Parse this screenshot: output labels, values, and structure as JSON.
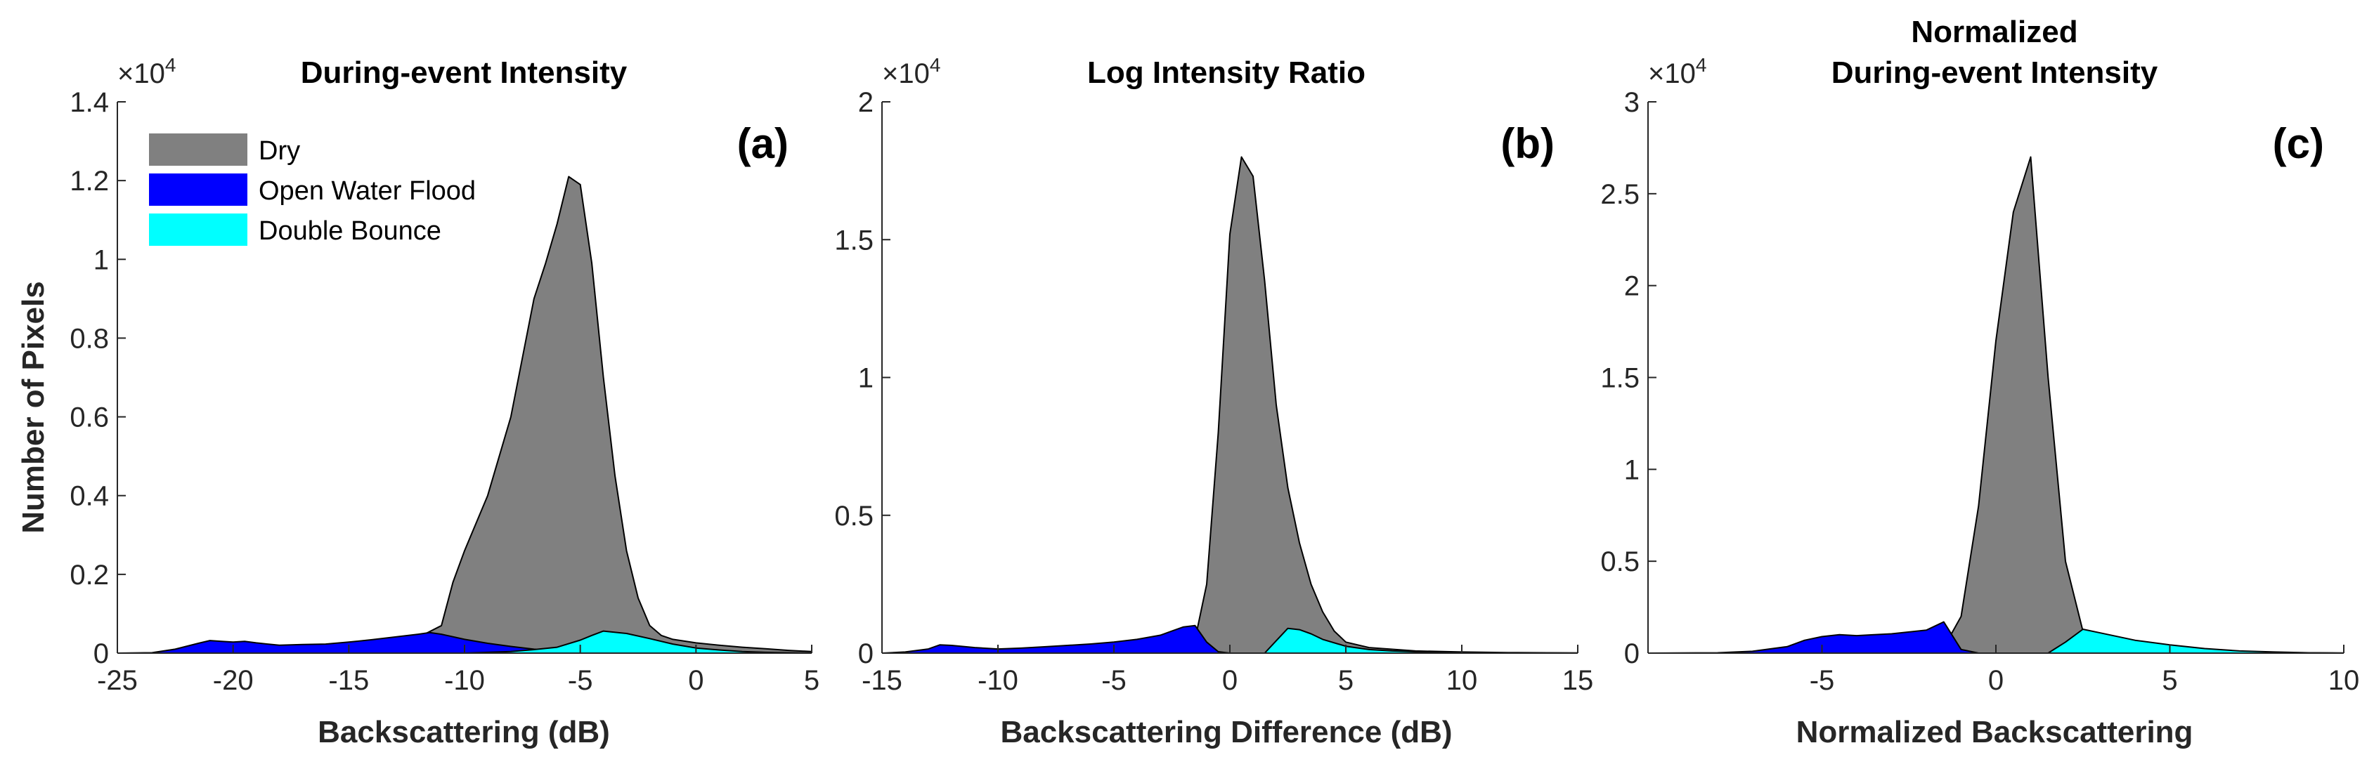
{
  "figure": {
    "ylabel": "Number of Pixels",
    "colors": {
      "dry": "#808080",
      "open_water": "#0000ff",
      "double_bounce": "#00ffff",
      "axis": "#262626"
    }
  },
  "legend": {
    "entries": [
      {
        "label": "Dry",
        "color": "#808080"
      },
      {
        "label": "Open Water Flood",
        "color": "#0000ff"
      },
      {
        "label": "Double Bounce",
        "color": "#00ffff"
      }
    ]
  },
  "chart_data": [
    {
      "type": "area",
      "panel_label": "(a)",
      "title": [
        "During-event Intensity"
      ],
      "xlabel": "Backscattering (dB)",
      "ylabel": "Number of Pixels",
      "xlim": [
        -25,
        5
      ],
      "ylim": [
        0,
        14000
      ],
      "y_exponent": "×10",
      "y_exponent_power": "4",
      "xticks": [
        -25,
        -20,
        -15,
        -10,
        -5,
        0,
        5
      ],
      "xtick_labels": [
        "-25",
        "-20",
        "-15",
        "-10",
        "-5",
        "0",
        "5"
      ],
      "yticks": [
        0,
        2000,
        4000,
        6000,
        8000,
        10000,
        12000,
        14000
      ],
      "ytick_labels": [
        "0",
        "0.2",
        "0.4",
        "0.6",
        "0.8",
        "1",
        "1.2",
        "1.4"
      ],
      "series": [
        {
          "name": "Dry",
          "color": "#808080",
          "points": [
            [
              -25,
              0
            ],
            [
              -20,
              0
            ],
            [
              -16,
              30
            ],
            [
              -14,
              80
            ],
            [
              -13,
              200
            ],
            [
              -12,
              400
            ],
            [
              -11,
              700
            ],
            [
              -10.5,
              1800
            ],
            [
              -10,
              2600
            ],
            [
              -9,
              4000
            ],
            [
              -8,
              6000
            ],
            [
              -7,
              9000
            ],
            [
              -6.5,
              9900
            ],
            [
              -6,
              10900
            ],
            [
              -5.5,
              12100
            ],
            [
              -5,
              11900
            ],
            [
              -4.5,
              9900
            ],
            [
              -4,
              7000
            ],
            [
              -3.5,
              4500
            ],
            [
              -3,
              2600
            ],
            [
              -2.5,
              1400
            ],
            [
              -2,
              700
            ],
            [
              -1.5,
              450
            ],
            [
              -1,
              350
            ],
            [
              0,
              260
            ],
            [
              1,
              200
            ],
            [
              2,
              150
            ],
            [
              3,
              110
            ],
            [
              4,
              70
            ],
            [
              5,
              40
            ]
          ]
        },
        {
          "name": "Open Water Flood",
          "color": "#0000ff",
          "points": [
            [
              -25,
              0
            ],
            [
              -23.5,
              10
            ],
            [
              -22.5,
              100
            ],
            [
              -21.5,
              250
            ],
            [
              -21,
              320
            ],
            [
              -20.5,
              300
            ],
            [
              -20,
              280
            ],
            [
              -19.5,
              300
            ],
            [
              -19,
              260
            ],
            [
              -18,
              200
            ],
            [
              -17,
              220
            ],
            [
              -16,
              230
            ],
            [
              -15,
              280
            ],
            [
              -14,
              340
            ],
            [
              -13,
              410
            ],
            [
              -12,
              480
            ],
            [
              -11.5,
              520
            ],
            [
              -11,
              480
            ],
            [
              -10,
              350
            ],
            [
              -9,
              250
            ],
            [
              -8,
              170
            ],
            [
              -7,
              100
            ],
            [
              -6,
              50
            ],
            [
              -5,
              20
            ],
            [
              -4,
              5
            ],
            [
              -3,
              0
            ],
            [
              5,
              0
            ]
          ]
        },
        {
          "name": "Double Bounce",
          "color": "#00ffff",
          "points": [
            [
              -10,
              0
            ],
            [
              -8,
              40
            ],
            [
              -7,
              90
            ],
            [
              -6,
              150
            ],
            [
              -5,
              330
            ],
            [
              -4.5,
              450
            ],
            [
              -4,
              560
            ],
            [
              -3,
              500
            ],
            [
              -2,
              370
            ],
            [
              -1,
              230
            ],
            [
              0,
              130
            ],
            [
              1,
              80
            ],
            [
              2,
              40
            ],
            [
              3,
              20
            ],
            [
              4,
              10
            ],
            [
              5,
              5
            ]
          ]
        }
      ]
    },
    {
      "type": "area",
      "panel_label": "(b)",
      "title": [
        "Log Intensity Ratio"
      ],
      "xlabel": "Backscattering Difference (dB)",
      "ylabel": "",
      "xlim": [
        -15,
        15
      ],
      "ylim": [
        0,
        20000
      ],
      "y_exponent": "×10",
      "y_exponent_power": "4",
      "xticks": [
        -15,
        -10,
        -5,
        0,
        5,
        10,
        15
      ],
      "xtick_labels": [
        "-15",
        "-10",
        "-5",
        "0",
        "5",
        "10",
        "15"
      ],
      "yticks": [
        0,
        5000,
        10000,
        15000,
        20000
      ],
      "ytick_labels": [
        "0",
        "0.5",
        "1",
        "1.5",
        "2"
      ],
      "series": [
        {
          "name": "Dry",
          "color": "#808080",
          "points": [
            [
              -15,
              0
            ],
            [
              -8,
              0
            ],
            [
              -4,
              50
            ],
            [
              -2,
              250
            ],
            [
              -1.5,
              500
            ],
            [
              -1,
              2500
            ],
            [
              -0.5,
              8000
            ],
            [
              0,
              15200
            ],
            [
              0.5,
              18000
            ],
            [
              1,
              17300
            ],
            [
              1.5,
              13500
            ],
            [
              2,
              9000
            ],
            [
              2.5,
              6000
            ],
            [
              3,
              4000
            ],
            [
              3.5,
              2500
            ],
            [
              4,
              1500
            ],
            [
              4.5,
              800
            ],
            [
              5,
              400
            ],
            [
              6,
              200
            ],
            [
              8,
              80
            ],
            [
              10,
              40
            ],
            [
              12,
              20
            ],
            [
              15,
              5
            ]
          ]
        },
        {
          "name": "Open Water Flood",
          "color": "#0000ff",
          "points": [
            [
              -15,
              0
            ],
            [
              -14,
              40
            ],
            [
              -13,
              150
            ],
            [
              -12.5,
              300
            ],
            [
              -12,
              280
            ],
            [
              -11,
              200
            ],
            [
              -10,
              150
            ],
            [
              -9,
              180
            ],
            [
              -8,
              230
            ],
            [
              -7,
              280
            ],
            [
              -6,
              330
            ],
            [
              -5,
              400
            ],
            [
              -4,
              500
            ],
            [
              -3,
              650
            ],
            [
              -2.5,
              800
            ],
            [
              -2,
              950
            ],
            [
              -1.5,
              1000
            ],
            [
              -1,
              400
            ],
            [
              -0.5,
              50
            ],
            [
              0,
              0
            ],
            [
              15,
              0
            ]
          ]
        },
        {
          "name": "Double Bounce",
          "color": "#00ffff",
          "points": [
            [
              -15,
              0
            ],
            [
              1.5,
              0
            ],
            [
              2,
              450
            ],
            [
              2.5,
              900
            ],
            [
              3,
              850
            ],
            [
              3.5,
              700
            ],
            [
              4,
              500
            ],
            [
              5,
              250
            ],
            [
              6,
              130
            ],
            [
              7,
              80
            ],
            [
              8,
              50
            ],
            [
              9,
              30
            ],
            [
              10,
              20
            ],
            [
              12,
              10
            ],
            [
              15,
              2
            ]
          ]
        }
      ]
    },
    {
      "type": "area",
      "panel_label": "(c)",
      "title": [
        "Normalized",
        "During-event Intensity"
      ],
      "xlabel": "Normalized Backscattering",
      "ylabel": "",
      "xlim": [
        -10,
        10
      ],
      "ylim": [
        0,
        30000
      ],
      "y_exponent": "×10",
      "y_exponent_power": "4",
      "xticks": [
        -5,
        0,
        5,
        10
      ],
      "xtick_labels": [
        "-5",
        "0",
        "5",
        "10"
      ],
      "yticks": [
        0,
        5000,
        10000,
        15000,
        20000,
        25000,
        30000
      ],
      "ytick_labels": [
        "0",
        "0.5",
        "1",
        "1.5",
        "2",
        "2.5",
        "3"
      ],
      "series": [
        {
          "name": "Dry",
          "color": "#808080",
          "points": [
            [
              -10,
              0
            ],
            [
              -4,
              0
            ],
            [
              -2.5,
              100
            ],
            [
              -1.5,
              300
            ],
            [
              -1,
              2000
            ],
            [
              -0.5,
              8000
            ],
            [
              0,
              17000
            ],
            [
              0.5,
              24000
            ],
            [
              1,
              27000
            ],
            [
              1.5,
              15000
            ],
            [
              2,
              5000
            ],
            [
              2.5,
              1200
            ],
            [
              3,
              600
            ],
            [
              4,
              300
            ],
            [
              5,
              150
            ],
            [
              6,
              80
            ],
            [
              8,
              30
            ],
            [
              10,
              5
            ]
          ]
        },
        {
          "name": "Open Water Flood",
          "color": "#0000ff",
          "points": [
            [
              -10,
              0
            ],
            [
              -8,
              20
            ],
            [
              -7,
              100
            ],
            [
              -6,
              350
            ],
            [
              -5.5,
              700
            ],
            [
              -5,
              900
            ],
            [
              -4.5,
              1000
            ],
            [
              -4,
              950
            ],
            [
              -3.5,
              1000
            ],
            [
              -3,
              1050
            ],
            [
              -2.5,
              1150
            ],
            [
              -2,
              1250
            ],
            [
              -1.5,
              1700
            ],
            [
              -1,
              200
            ],
            [
              -0.5,
              0
            ],
            [
              10,
              0
            ]
          ]
        },
        {
          "name": "Double Bounce",
          "color": "#00ffff",
          "points": [
            [
              -10,
              0
            ],
            [
              1.5,
              0
            ],
            [
              2,
              600
            ],
            [
              2.5,
              1300
            ],
            [
              3,
              1100
            ],
            [
              4,
              700
            ],
            [
              5,
              450
            ],
            [
              6,
              250
            ],
            [
              7,
              120
            ],
            [
              8,
              60
            ],
            [
              9,
              20
            ],
            [
              10,
              5
            ]
          ]
        }
      ]
    }
  ]
}
